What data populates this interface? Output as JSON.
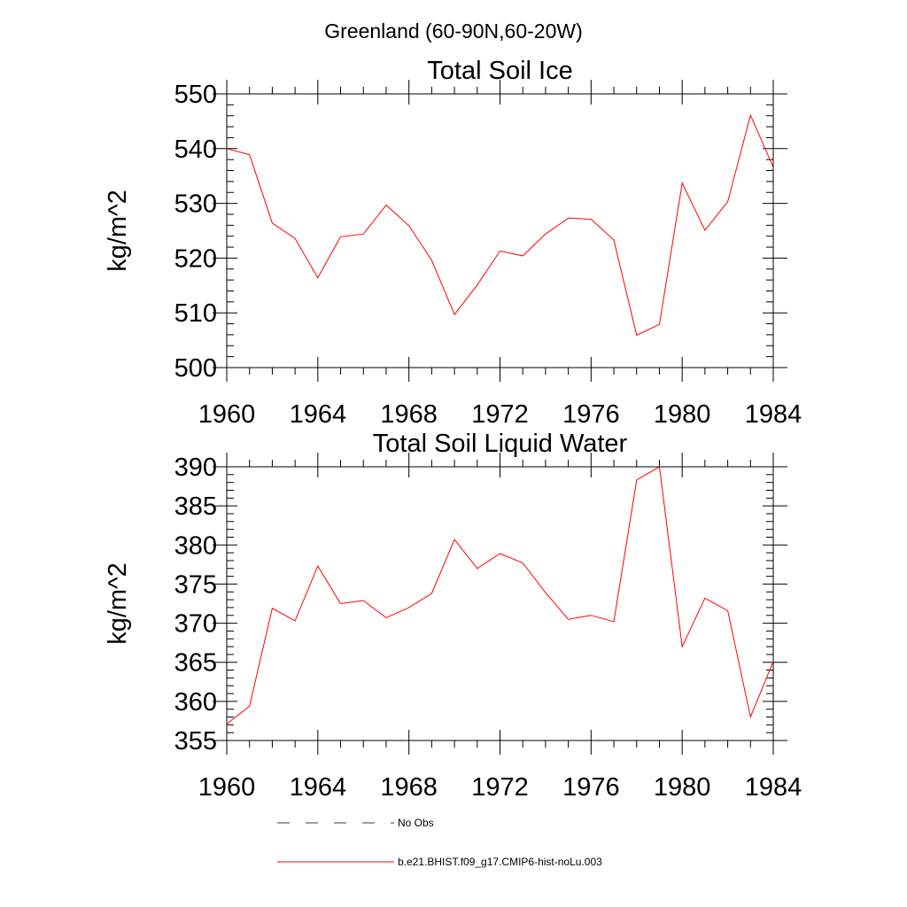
{
  "figure": {
    "suptitle": "Greenland (60-90N,60-20W)"
  },
  "legend": {
    "items": [
      {
        "label": "No Obs",
        "style": "dashed",
        "color": "#3a3a5a"
      },
      {
        "label": "b.e21.BHIST.f09_g17.CMIP6-hist-noLu.003",
        "style": "solid",
        "color": "#ff0000"
      }
    ]
  },
  "chart_data": [
    {
      "type": "line",
      "title": "Total Soil Ice",
      "xlabel": "",
      "ylabel": "kg/m^2",
      "xlim": [
        1960,
        1984
      ],
      "ylim": [
        500,
        550
      ],
      "xticks": [
        1960,
        1964,
        1968,
        1972,
        1976,
        1980,
        1984
      ],
      "yticks": [
        500,
        510,
        520,
        530,
        540,
        550
      ],
      "grid": false,
      "series": [
        {
          "name": "b.e21.BHIST.f09_g17.CMIP6-hist-noLu.003",
          "color": "#ff0000",
          "x": [
            1960,
            1961,
            1962,
            1963,
            1964,
            1965,
            1966,
            1967,
            1968,
            1969,
            1970,
            1971,
            1972,
            1973,
            1974,
            1975,
            1976,
            1977,
            1978,
            1979,
            1980,
            1981,
            1982,
            1983,
            1984
          ],
          "y": [
            540.0,
            538.9,
            526.4,
            523.6,
            516.4,
            523.9,
            524.4,
            529.7,
            525.9,
            519.6,
            509.7,
            515.1,
            521.3,
            520.4,
            524.4,
            527.3,
            527.1,
            523.3,
            505.9,
            507.9,
            533.7,
            525.1,
            530.3,
            546.1,
            536.6
          ]
        }
      ]
    },
    {
      "type": "line",
      "title": "Total Soil Liquid Water",
      "xlabel": "",
      "ylabel": "kg/m^2",
      "xlim": [
        1960,
        1984
      ],
      "ylim": [
        355,
        390
      ],
      "xticks": [
        1960,
        1964,
        1968,
        1972,
        1976,
        1980,
        1984
      ],
      "yticks": [
        355,
        360,
        365,
        370,
        375,
        380,
        385,
        390
      ],
      "grid": false,
      "series": [
        {
          "name": "b.e21.BHIST.f09_g17.CMIP6-hist-noLu.003",
          "color": "#ff0000",
          "x": [
            1960,
            1961,
            1962,
            1963,
            1964,
            1965,
            1966,
            1967,
            1968,
            1969,
            1970,
            1971,
            1972,
            1973,
            1974,
            1975,
            1976,
            1977,
            1978,
            1979,
            1980,
            1981,
            1982,
            1983,
            1984
          ],
          "y": [
            357.1,
            359.4,
            371.9,
            370.3,
            377.3,
            372.5,
            372.9,
            370.7,
            372.0,
            373.8,
            380.7,
            377.0,
            378.9,
            377.7,
            373.9,
            370.5,
            371.0,
            370.2,
            388.3,
            390.0,
            367.0,
            373.2,
            371.6,
            358.0,
            365.1
          ]
        }
      ]
    }
  ]
}
